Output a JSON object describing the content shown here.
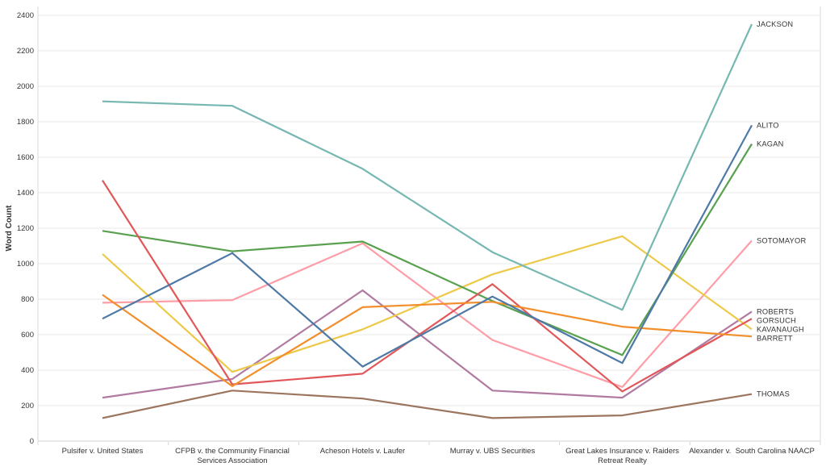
{
  "chart_data": {
    "type": "line",
    "title": "",
    "xlabel": "",
    "ylabel": "Word Count",
    "ylim": [
      0,
      2400
    ],
    "yticks": [
      0,
      200,
      400,
      600,
      800,
      1000,
      1200,
      1400,
      1600,
      1800,
      2000,
      2200,
      2400
    ],
    "grid": true,
    "legend_position": "line-end-labels-right",
    "categories": [
      "Pulsifer v. United States",
      "CFPB v. the Community Financial Services Association",
      "Acheson Hotels v. Laufer",
      "Murray v. UBS Securities",
      "Great Lakes Insurance v. Raiders Retreat Realty",
      "Alexander v.  South Carolina NAACP"
    ],
    "category_label_lines": [
      [
        "Pulsifer v. United States"
      ],
      [
        "CFPB v. the Community Financial",
        "Services Association"
      ],
      [
        "Acheson Hotels v. Laufer"
      ],
      [
        "Murray v. UBS Securities"
      ],
      [
        "Great Lakes Insurance v. Raiders",
        "Retreat Realty"
      ],
      [
        "Alexander v.  South Carolina NAACP"
      ]
    ],
    "series": [
      {
        "name": "ALITO",
        "color": "#4e79a7",
        "values": [
          690,
          1060,
          420,
          815,
          440,
          1780
        ]
      },
      {
        "name": "BARRETT",
        "color": "#f28e2b",
        "values": [
          825,
          310,
          755,
          785,
          645,
          590
        ]
      },
      {
        "name": "GORSUCH",
        "color": "#e15759",
        "values": [
          1470,
          320,
          380,
          885,
          280,
          690
        ]
      },
      {
        "name": "JACKSON",
        "color": "#76b7b2",
        "values": [
          1915,
          1890,
          1535,
          1065,
          740,
          2350
        ]
      },
      {
        "name": "KAGAN",
        "color": "#59a14f",
        "values": [
          1185,
          1070,
          1125,
          790,
          485,
          1675
        ]
      },
      {
        "name": "KAVANAUGH",
        "color": "#edc949",
        "values": [
          1055,
          390,
          630,
          940,
          1155,
          630
        ]
      },
      {
        "name": "ROBERTS",
        "color": "#b07aa1",
        "values": [
          245,
          350,
          850,
          285,
          245,
          730
        ]
      },
      {
        "name": "SOTOMAYOR",
        "color": "#ff9da7",
        "values": [
          780,
          795,
          1115,
          570,
          305,
          1130
        ]
      },
      {
        "name": "THOMAS",
        "color": "#9c755f",
        "values": [
          130,
          285,
          240,
          130,
          145,
          265
        ]
      }
    ]
  },
  "style": {
    "grid_color": "#e9e9e9",
    "axis_color": "#d8d8d8",
    "zero_line_color": "#d5d5d5",
    "tick_label_color": "#333333",
    "series_label_color": "#2e2e2e"
  }
}
